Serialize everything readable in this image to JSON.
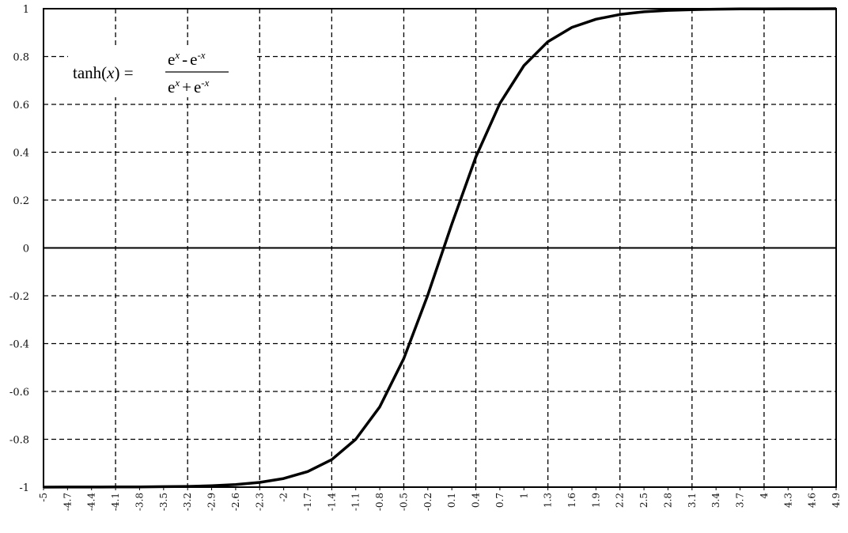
{
  "chart_data": {
    "type": "line",
    "title": "",
    "xlabel": "",
    "ylabel": "",
    "ylim": [
      -1,
      1
    ],
    "xlim": [
      -5,
      4.9
    ],
    "grid": true,
    "legend": "none",
    "line_color": "#000000",
    "x_ticks": [
      "-5",
      "-4.7",
      "-4.4",
      "-4.1",
      "-3.8",
      "-3.5",
      "-3.2",
      "-2.9",
      "-2.6",
      "-2.3",
      "-2",
      "-1.7",
      "-1.4",
      "-1.1",
      "-0.8",
      "-0.5",
      "-0.2",
      "0.1",
      "0.4",
      "0.7",
      "1",
      "1.3",
      "1.6",
      "1.9",
      "2.2",
      "2.5",
      "2.8",
      "3.1",
      "3.4",
      "3.7",
      "4",
      "4.3",
      "4.6",
      "4.9"
    ],
    "y_ticks": [
      "1",
      "0.8",
      "0.6",
      "0.4",
      "0.2",
      "0",
      "-0.2",
      "-0.4",
      "-0.6",
      "-0.8",
      "-1"
    ],
    "series": [
      {
        "name": "",
        "x": [
          -5,
          -4.7,
          -4.4,
          -4.1,
          -3.8,
          -3.5,
          -3.2,
          -2.9,
          -2.6,
          -2.3,
          -2,
          -1.7,
          -1.4,
          -1.1,
          -0.8,
          -0.5,
          -0.2,
          0.1,
          0.4,
          0.7,
          1,
          1.3,
          1.6,
          1.9,
          2.2,
          2.5,
          2.8,
          3.1,
          3.4,
          3.7,
          4,
          4.3,
          4.6,
          4.9
        ],
        "y": [
          -0.9999,
          -0.9998,
          -0.9997,
          -0.9995,
          -0.999,
          -0.998,
          -0.997,
          -0.994,
          -0.989,
          -0.98,
          -0.964,
          -0.935,
          -0.885,
          -0.8,
          -0.664,
          -0.462,
          -0.197,
          0.1,
          0.38,
          0.604,
          0.762,
          0.862,
          0.922,
          0.956,
          0.976,
          0.987,
          0.993,
          0.996,
          0.998,
          0.999,
          0.9993,
          0.9996,
          0.9998,
          0.9999
        ]
      }
    ]
  },
  "formula": {
    "lhs": "tanh(",
    "var": "x",
    "lhs_close": ") =",
    "num_e1": "e",
    "num_sup1": "x",
    "num_op": "-",
    "num_e2": "e",
    "num_sup2": "-x",
    "den_e1": "e",
    "den_sup1": "x",
    "den_op": "+",
    "den_e2": "e",
    "den_sup2": "-x"
  }
}
